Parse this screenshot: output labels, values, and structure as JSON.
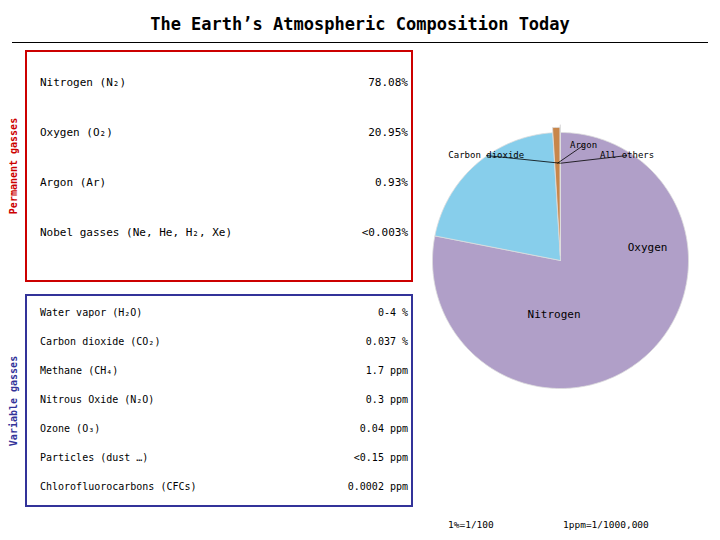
{
  "chart_data": {
    "type": "pie",
    "title": "The Earth’s Atmospheric Composition Today",
    "categories": [
      "Nitrogen",
      "Oxygen",
      "Argon",
      "Carbon dioxide",
      "All others"
    ],
    "values": [
      78.08,
      20.95,
      0.93,
      0.037,
      0.003
    ],
    "colors": [
      "#b09fc8",
      "#87ceeb",
      "#c8864a",
      "#d4c0e0",
      "#cccccc"
    ],
    "annotations": [
      {
        "title": "Permanent gasses",
        "color": "#cc0000",
        "rows": [
          [
            "Nitrogen (N₂)",
            "78.08%"
          ],
          [
            "Oxygen (O₂)",
            "20.95%"
          ],
          [
            "Argon (Ar)",
            "0.93%"
          ],
          [
            "Nobel gasses (Ne, He, H₂, Xe)",
            "<0.003%"
          ]
        ]
      },
      {
        "title": "Variable gasses",
        "color": "#333399",
        "rows": [
          [
            "Water vapor  (H₂O)",
            "0-4 %"
          ],
          [
            "Carbon dioxide (CO₂)",
            "0.037 %"
          ],
          [
            "Methane (CH₄)",
            "1.7 ppm"
          ],
          [
            "Nitrous Oxide (N₂O)",
            "0.3 ppm"
          ],
          [
            "Ozone  (O₃)",
            "0.04 ppm"
          ],
          [
            "Particles (dust …)",
            "<0.15  ppm"
          ],
          [
            "Chlorofluorocarbons (CFCs)",
            "0.0002 ppm"
          ]
        ]
      }
    ],
    "footnotes": [
      "1%=1/100",
      "1ppm=1/1000,000"
    ]
  }
}
